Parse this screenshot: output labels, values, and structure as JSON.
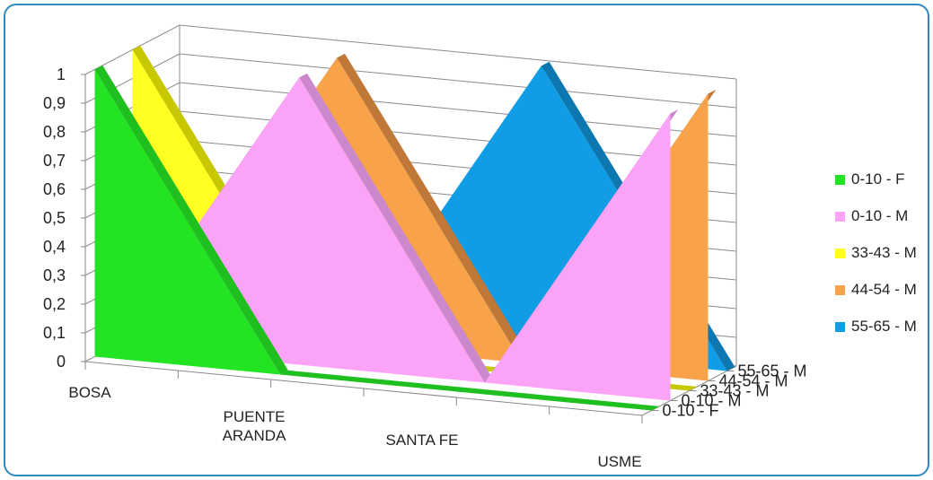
{
  "chart_data": {
    "type": "3d-area",
    "title": "",
    "categories": [
      "BOSA",
      "PUENTE\nARANDA",
      "SANTA FE",
      "USME"
    ],
    "series": [
      {
        "name": "0-10 - F",
        "color": "#22e422",
        "side": "#1fbf1f",
        "values": [
          1,
          0,
          0,
          0
        ]
      },
      {
        "name": "0-10 - M",
        "color": "#fba3f6",
        "side": "#cc88cc",
        "values": [
          0,
          1,
          0,
          1
        ]
      },
      {
        "name": "33-43 - M",
        "color": "#ffff22",
        "side": "#c8c800",
        "values": [
          1,
          0,
          0,
          0
        ]
      },
      {
        "name": "44-54 - M",
        "color": "#f8a24a",
        "side": "#c07838",
        "values": [
          0,
          1,
          0,
          1
        ]
      },
      {
        "name": "55-65 - M",
        "color": "#119de6",
        "side": "#0d78b0",
        "values": [
          0,
          0,
          1,
          0
        ]
      }
    ],
    "yticks": [
      "0",
      "0,1",
      "0,2",
      "0,3",
      "0,4",
      "0,5",
      "0,6",
      "0,7",
      "0,8",
      "0,9",
      "1"
    ],
    "ylim": [
      0,
      1
    ],
    "depth_axis_labels": [
      "55-65 - M",
      "44-54 - M",
      "33-43 - M",
      "0-10 - M",
      "0-10 - F"
    ],
    "legend_position": "right",
    "grid": true
  }
}
